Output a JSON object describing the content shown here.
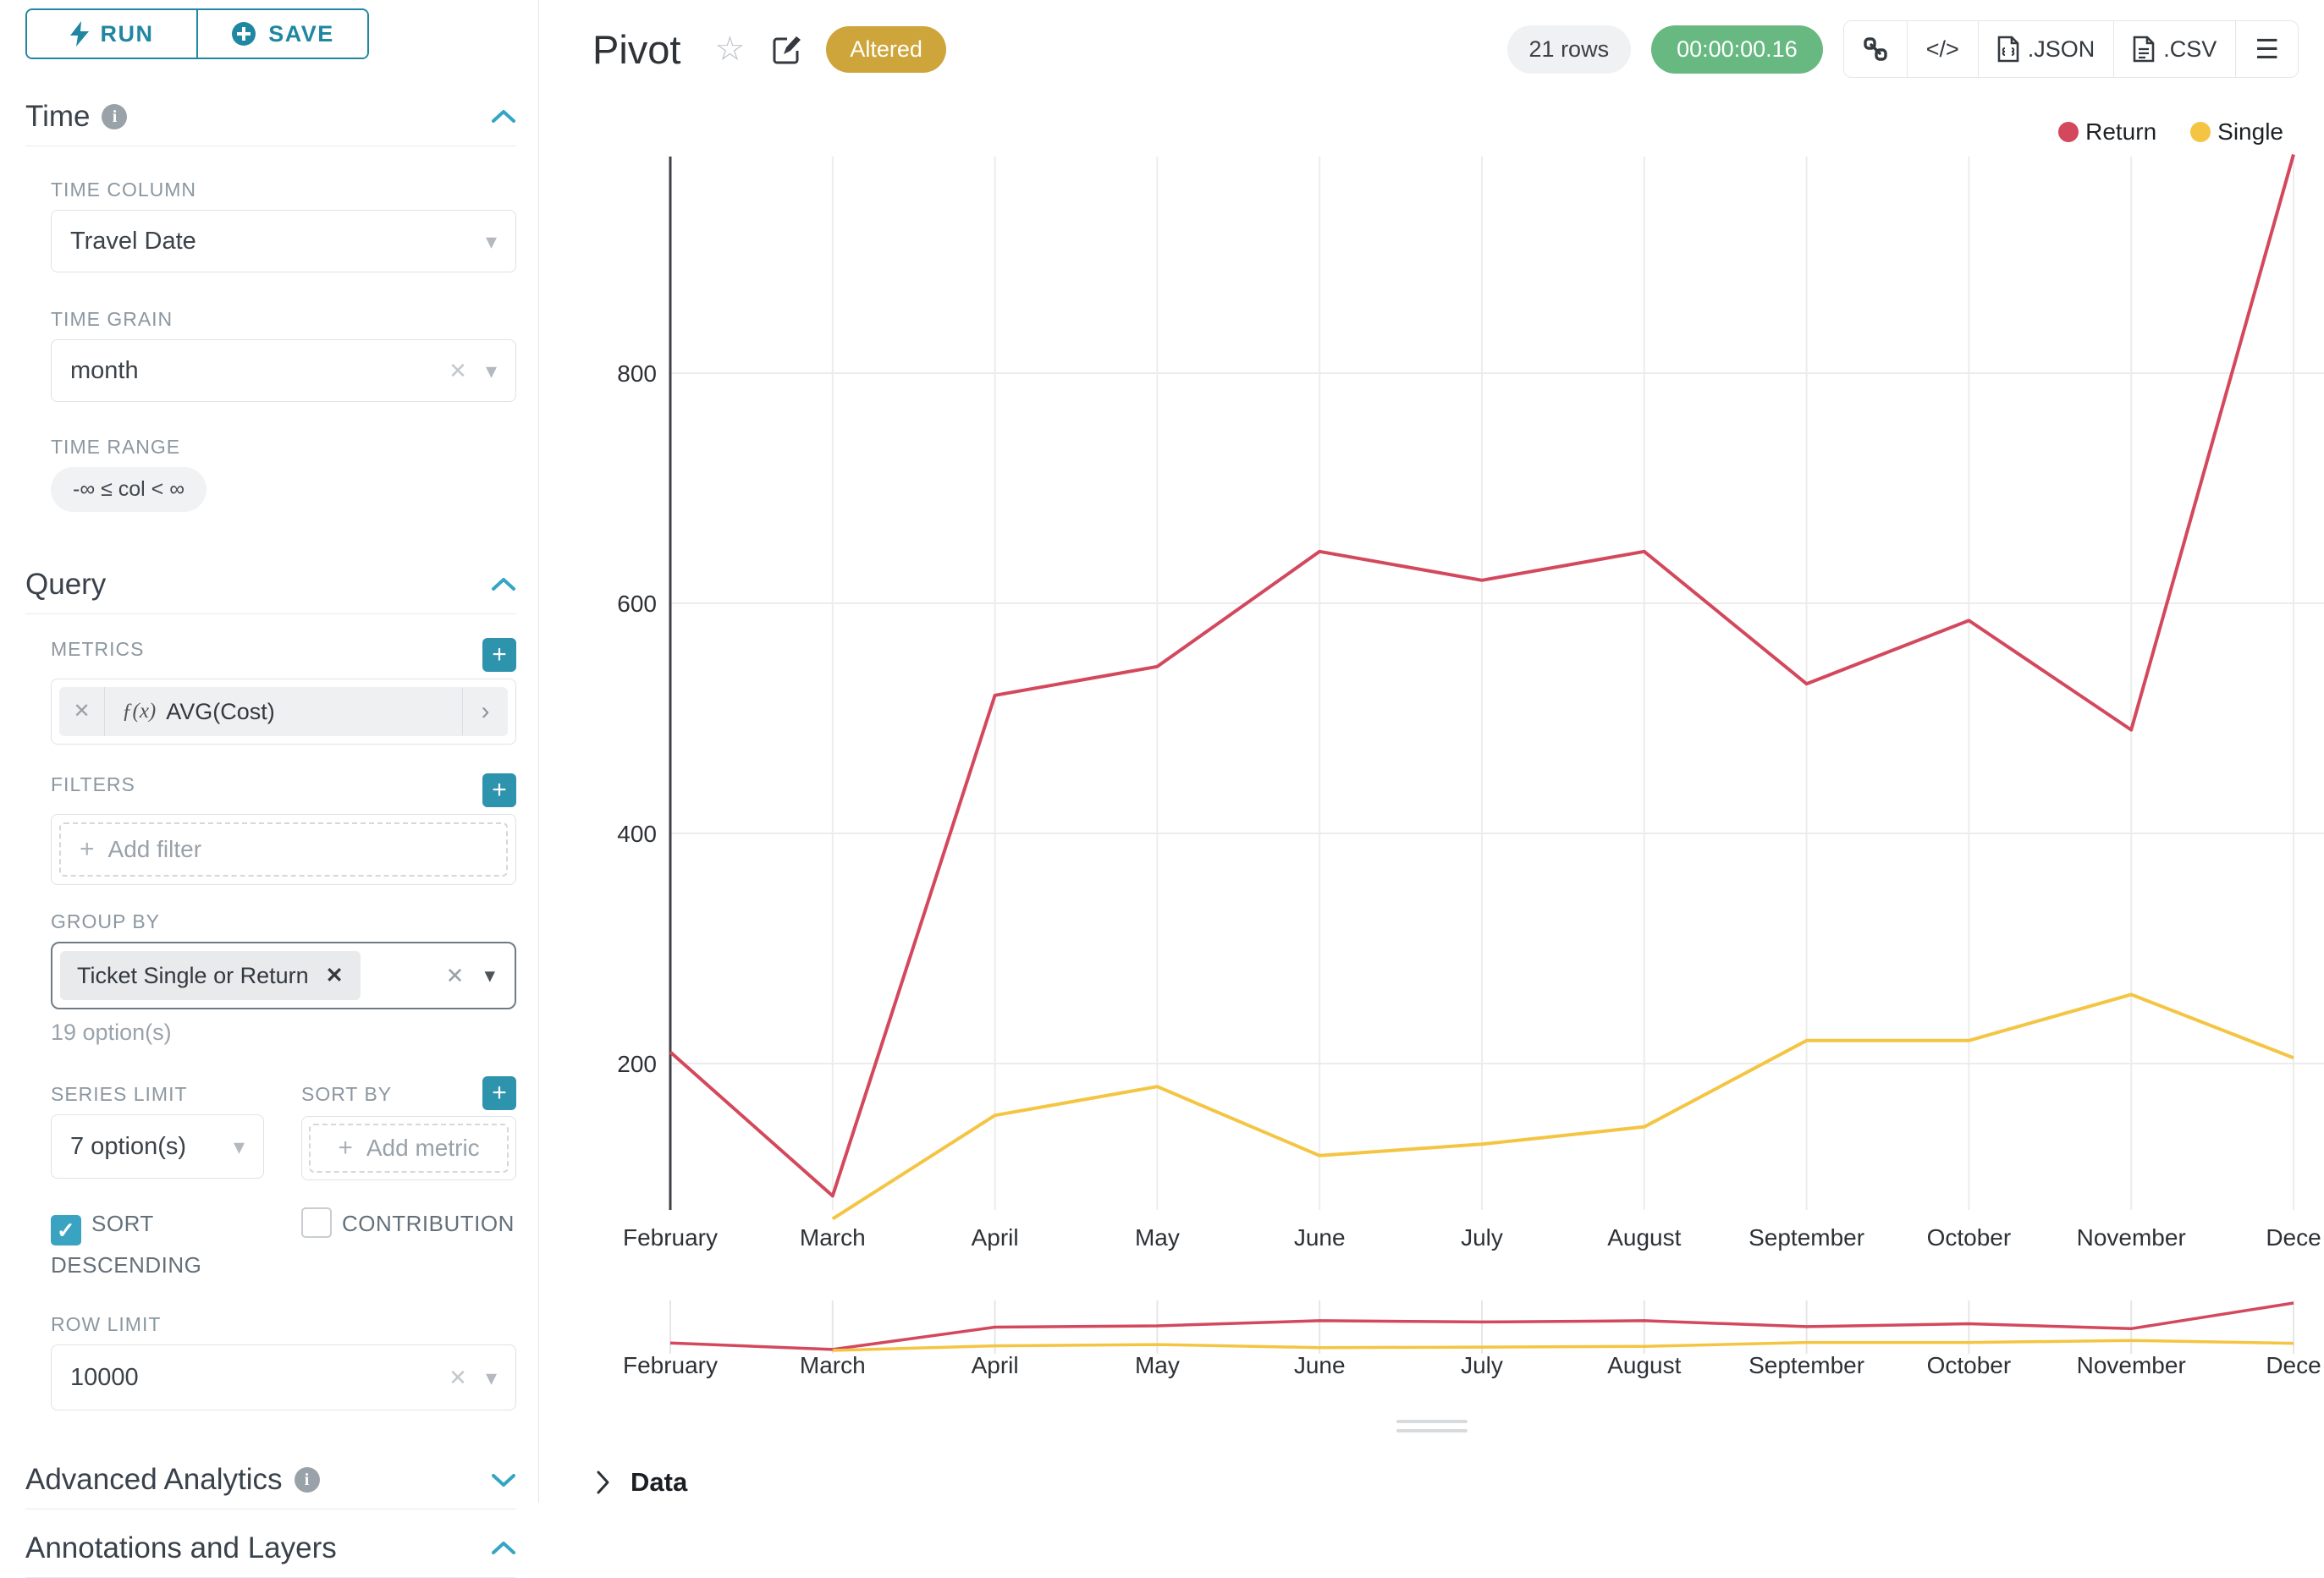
{
  "toolbar": {
    "run_label": "RUN",
    "save_label": "SAVE"
  },
  "sections": {
    "time": {
      "title": "Time",
      "time_column_label": "TIME COLUMN",
      "time_column_value": "Travel Date",
      "time_grain_label": "TIME GRAIN",
      "time_grain_value": "month",
      "time_range_label": "TIME RANGE",
      "time_range_value": "-∞ ≤ col < ∞"
    },
    "query": {
      "title": "Query",
      "metrics_label": "METRICS",
      "metric_fx": "ƒ(x)",
      "metric_value": "AVG(Cost)",
      "filters_label": "FILTERS",
      "add_filter_placeholder": "Add filter",
      "group_by_label": "GROUP BY",
      "group_by_tag": "Ticket Single or Return",
      "group_by_hint": "19 option(s)",
      "series_limit_label": "SERIES LIMIT",
      "series_limit_value": "7 option(s)",
      "sort_by_label": "SORT BY",
      "add_metric_placeholder": "Add metric",
      "sort_descending_label": "SORT DESCENDING",
      "contribution_label": "CONTRIBUTION",
      "row_limit_label": "ROW LIMIT",
      "row_limit_value": "10000"
    },
    "advanced": {
      "title": "Advanced Analytics"
    },
    "annotations": {
      "title": "Annotations and Layers"
    }
  },
  "header": {
    "title": "Pivot",
    "badge": "Altered",
    "rows_label": "21 rows",
    "timer": "00:00:00.16",
    "code_label": "</>",
    "json_label": ".JSON",
    "csv_label": ".CSV"
  },
  "footer": {
    "data_label": "Data"
  },
  "colors": {
    "accent": "#1f87a1",
    "return_red": "#d3485c",
    "single_yellow": "#f4c542",
    "badge_gold": "#cda53a",
    "timer_green": "#68b981"
  },
  "chart_data": {
    "type": "line",
    "x": [
      "February",
      "March",
      "April",
      "May",
      "June",
      "July",
      "August",
      "September",
      "October",
      "November",
      "Dece"
    ],
    "series": [
      {
        "name": "Return",
        "color": "#d3485c",
        "values": [
          210,
          85,
          520,
          545,
          645,
          620,
          645,
          530,
          585,
          490,
          990
        ]
      },
      {
        "name": "Single",
        "color": "#f4c542",
        "values": [
          null,
          65,
          155,
          180,
          120,
          130,
          145,
          220,
          220,
          260,
          205
        ]
      }
    ],
    "yticks": [
      200,
      400,
      600,
      800
    ],
    "ylim": [
      0,
      1000
    ],
    "xlabel": "",
    "ylabel": "",
    "grid": true,
    "legend_position": "top-right",
    "has_mini_brush_chart": true
  }
}
